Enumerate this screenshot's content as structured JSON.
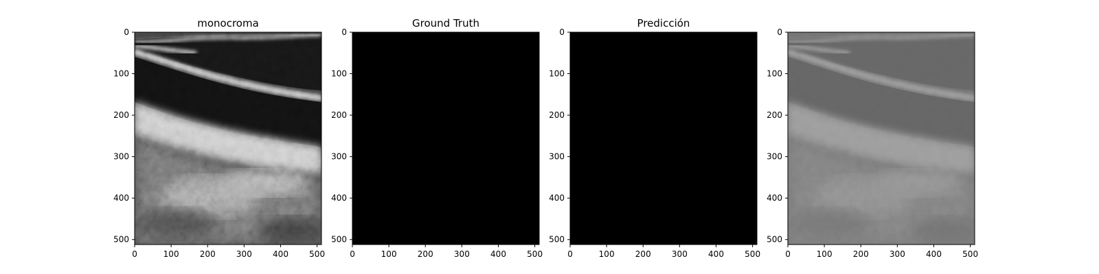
{
  "chart_data": [
    {
      "type": "heatmap",
      "title": "monocroma",
      "colormap": "gray",
      "content": "ultrasound",
      "x_ticks": [
        0,
        100,
        200,
        300,
        400,
        500
      ],
      "y_ticks": [
        0,
        100,
        200,
        300,
        400,
        500
      ],
      "xlim": [
        0,
        512
      ],
      "ylim": [
        512,
        0
      ]
    },
    {
      "type": "heatmap",
      "title": "Ground Truth",
      "colormap": "gray",
      "content": "blank",
      "fill": "#000000",
      "x_ticks": [
        0,
        100,
        200,
        300,
        400,
        500
      ],
      "y_ticks": [
        0,
        100,
        200,
        300,
        400,
        500
      ],
      "xlim": [
        0,
        512
      ],
      "ylim": [
        512,
        0
      ]
    },
    {
      "type": "heatmap",
      "title": "Predicción",
      "colormap": "gray",
      "content": "blank",
      "fill": "#000000",
      "x_ticks": [
        0,
        100,
        200,
        300,
        400,
        500
      ],
      "y_ticks": [
        0,
        100,
        200,
        300,
        400,
        500
      ],
      "xlim": [
        0,
        512
      ],
      "ylim": [
        512,
        0
      ]
    },
    {
      "type": "heatmap",
      "title": "",
      "colormap": "gray",
      "content": "ultrasound-overlay",
      "x_ticks": [
        0,
        100,
        200,
        300,
        400,
        500
      ],
      "y_ticks": [
        0,
        100,
        200,
        300,
        400,
        500
      ],
      "xlim": [
        0,
        512
      ],
      "ylim": [
        512,
        0
      ]
    }
  ]
}
